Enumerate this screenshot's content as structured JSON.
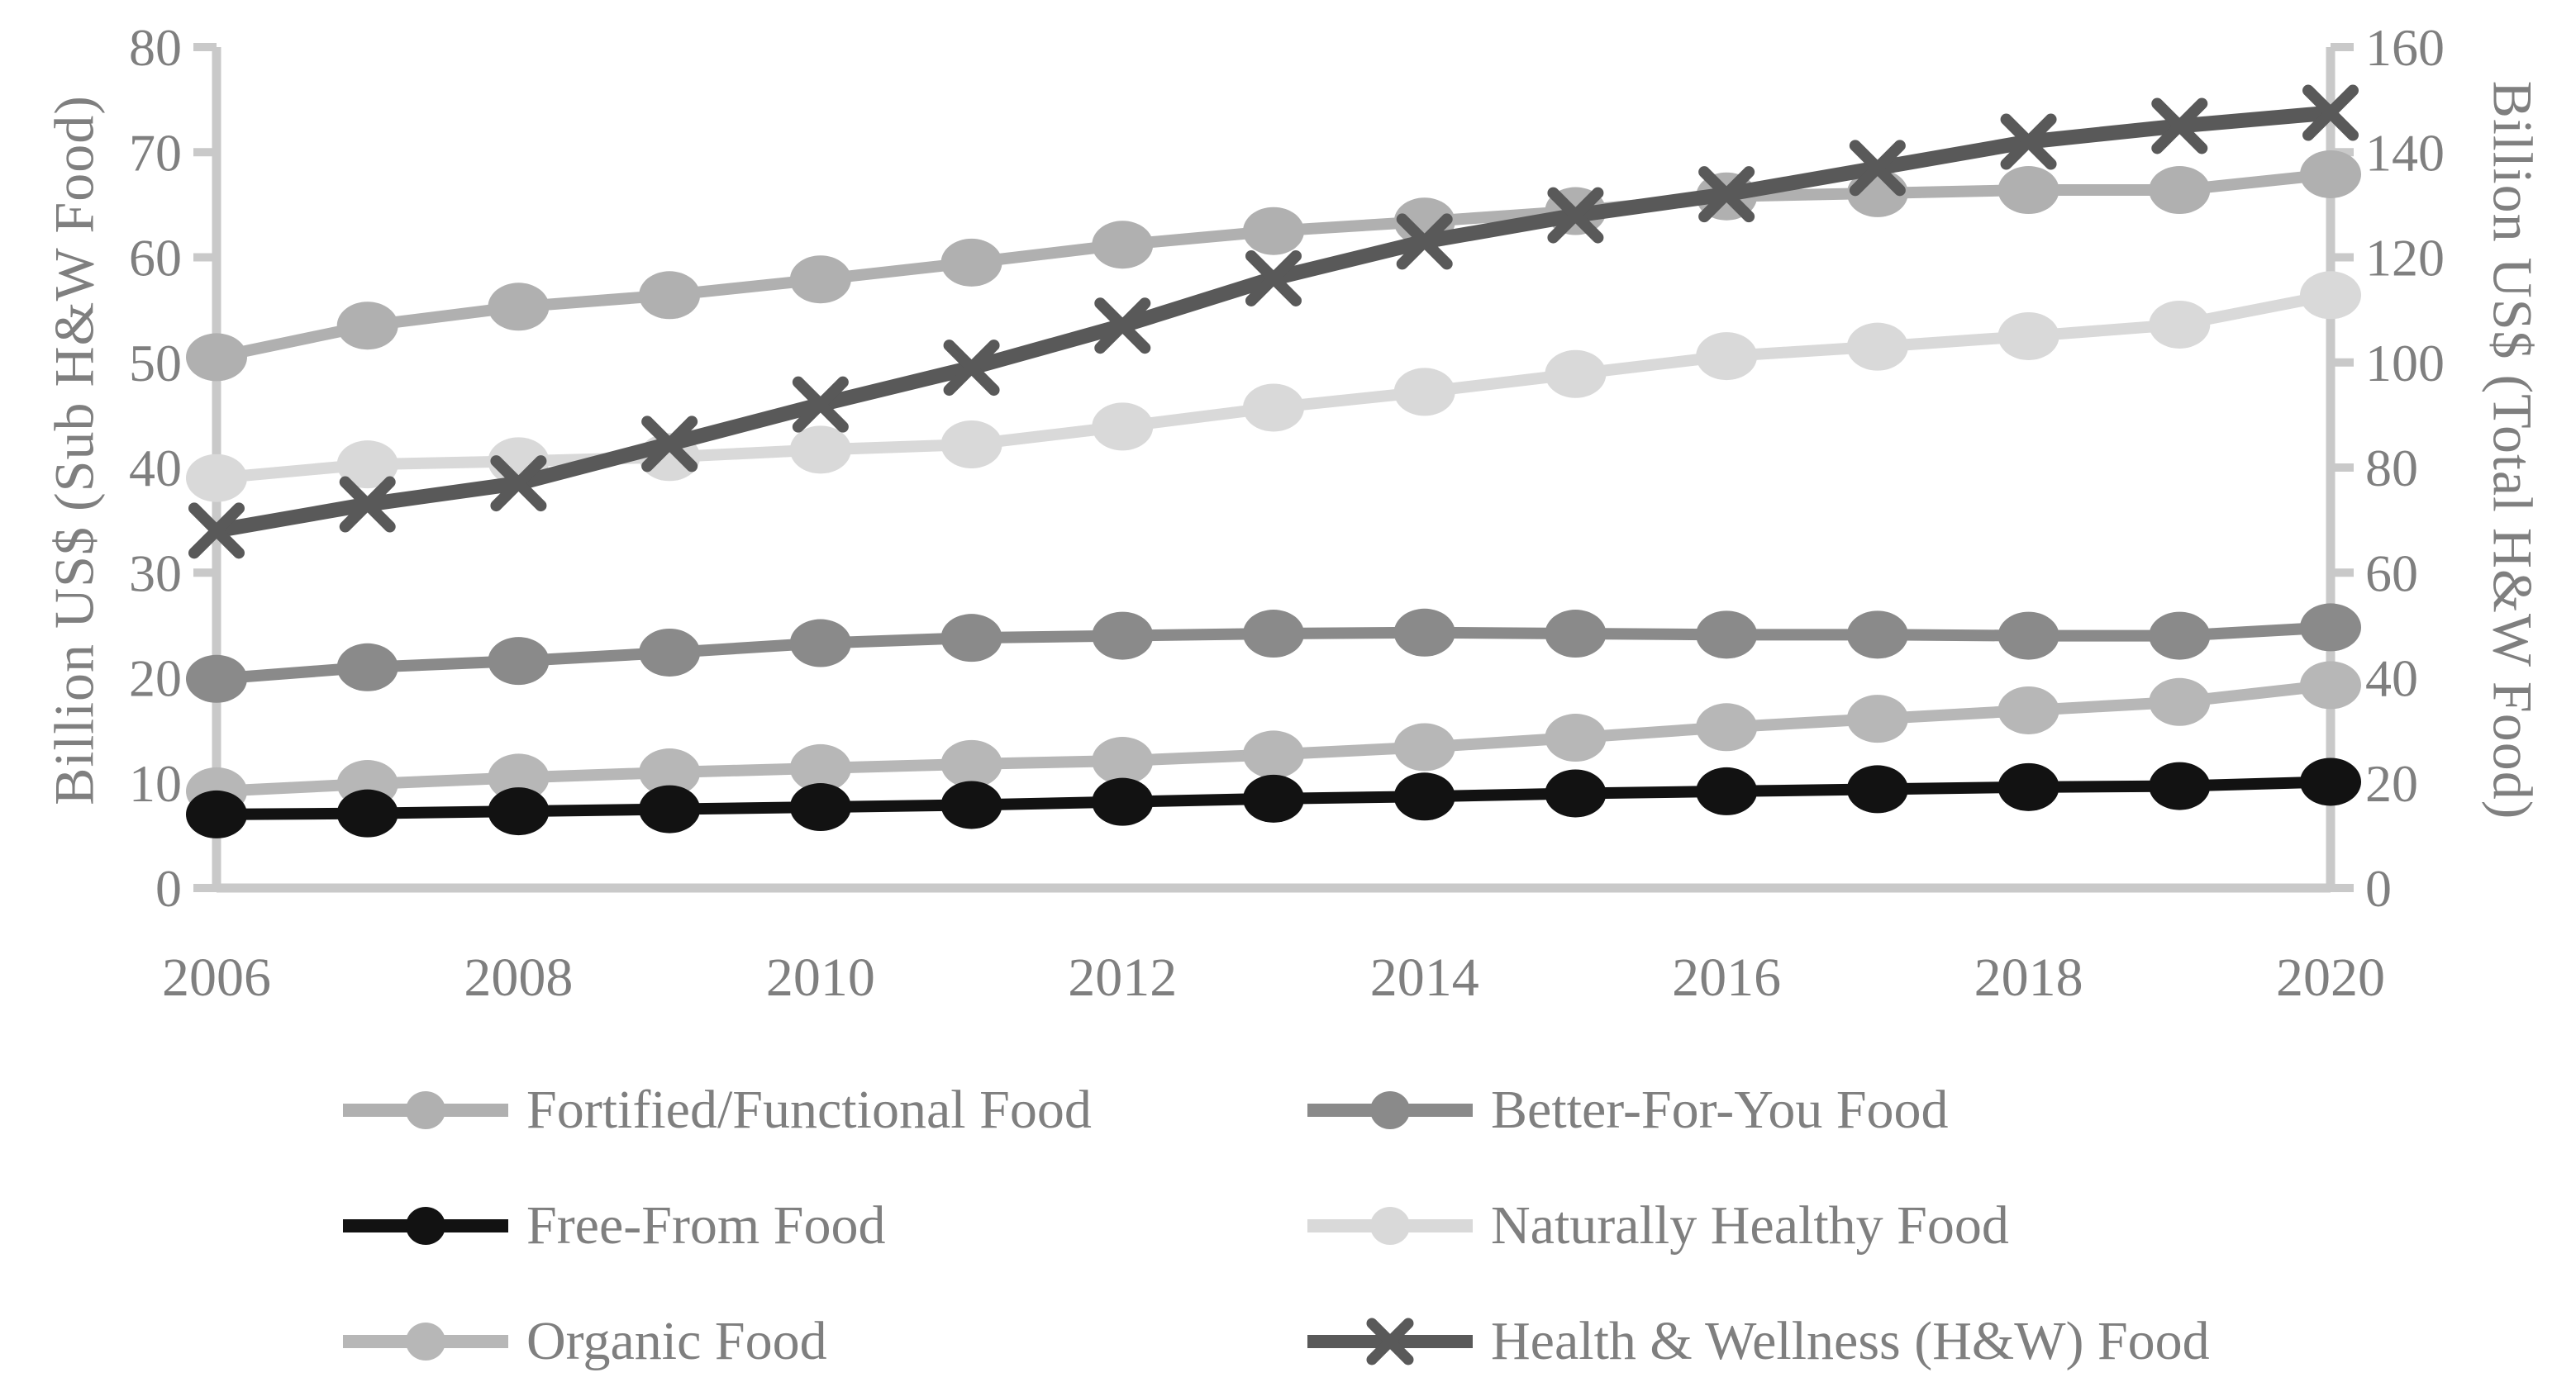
{
  "chart_data": {
    "type": "line",
    "title": "",
    "x": [
      2006,
      2007,
      2008,
      2009,
      2010,
      2011,
      2012,
      2013,
      2014,
      2015,
      2016,
      2017,
      2018,
      2019,
      2020
    ],
    "x_tick_labels": [
      "2006",
      "2008",
      "2010",
      "2012",
      "2014",
      "2016",
      "2018",
      "2020"
    ],
    "left_axis": {
      "label": "Billion US$ (Sub H&W Food)",
      "min": 0,
      "max": 80,
      "step": 10,
      "tick_labels": [
        "0",
        "10",
        "20",
        "30",
        "40",
        "50",
        "60",
        "70",
        "80"
      ]
    },
    "right_axis": {
      "label": "Billion US$ (Total H&W Food)",
      "min": 0,
      "max": 160,
      "step": 20,
      "tick_labels": [
        "0",
        "20",
        "40",
        "60",
        "80",
        "100",
        "120",
        "140",
        "160"
      ]
    },
    "grid": "off",
    "legend_position": "bottom",
    "series": [
      {
        "name": "Fortified/Functional Food",
        "axis": "left",
        "marker": "circle",
        "color": "#b0b0b0",
        "values": [
          50.5,
          53.5,
          55.3,
          56.4,
          57.9,
          59.5,
          61.2,
          62.5,
          63.4,
          64.4,
          65.8,
          66.1,
          66.4,
          66.4,
          67.9
        ]
      },
      {
        "name": "Better-For-You Food",
        "axis": "left",
        "marker": "circle",
        "color": "#8a8a8a",
        "values": [
          19.9,
          21.0,
          21.6,
          22.4,
          23.3,
          23.8,
          24.0,
          24.2,
          24.3,
          24.2,
          24.1,
          24.1,
          24.0,
          24.0,
          24.8
        ]
      },
      {
        "name": "Free-From Food",
        "axis": "left",
        "marker": "circle",
        "color": "#121212",
        "values": [
          7.0,
          7.1,
          7.3,
          7.5,
          7.7,
          7.9,
          8.2,
          8.5,
          8.7,
          9.0,
          9.2,
          9.4,
          9.6,
          9.7,
          10.1
        ]
      },
      {
        "name": "Naturally Healthy Food",
        "axis": "left",
        "marker": "circle",
        "color": "#d9d9d9",
        "values": [
          39.0,
          40.3,
          40.6,
          41.0,
          41.7,
          42.2,
          43.9,
          45.7,
          47.2,
          48.9,
          50.6,
          51.5,
          52.5,
          53.6,
          56.4
        ]
      },
      {
        "name": "Organic Food",
        "axis": "left",
        "marker": "circle",
        "color": "#b7b7b7",
        "values": [
          9.2,
          9.9,
          10.5,
          11.0,
          11.4,
          11.8,
          12.1,
          12.7,
          13.4,
          14.3,
          15.3,
          16.1,
          16.9,
          17.7,
          19.3
        ]
      },
      {
        "name": "Health & Wellness (H&W) Food",
        "axis": "right",
        "marker": "x",
        "color": "#595959",
        "values": [
          68,
          73,
          77,
          84.5,
          92,
          99,
          107,
          116,
          123,
          128,
          132,
          137,
          142,
          145,
          147.5
        ]
      }
    ],
    "colors": {
      "axis_line": "#c9c9c9",
      "text": "#7f7f7f"
    }
  }
}
